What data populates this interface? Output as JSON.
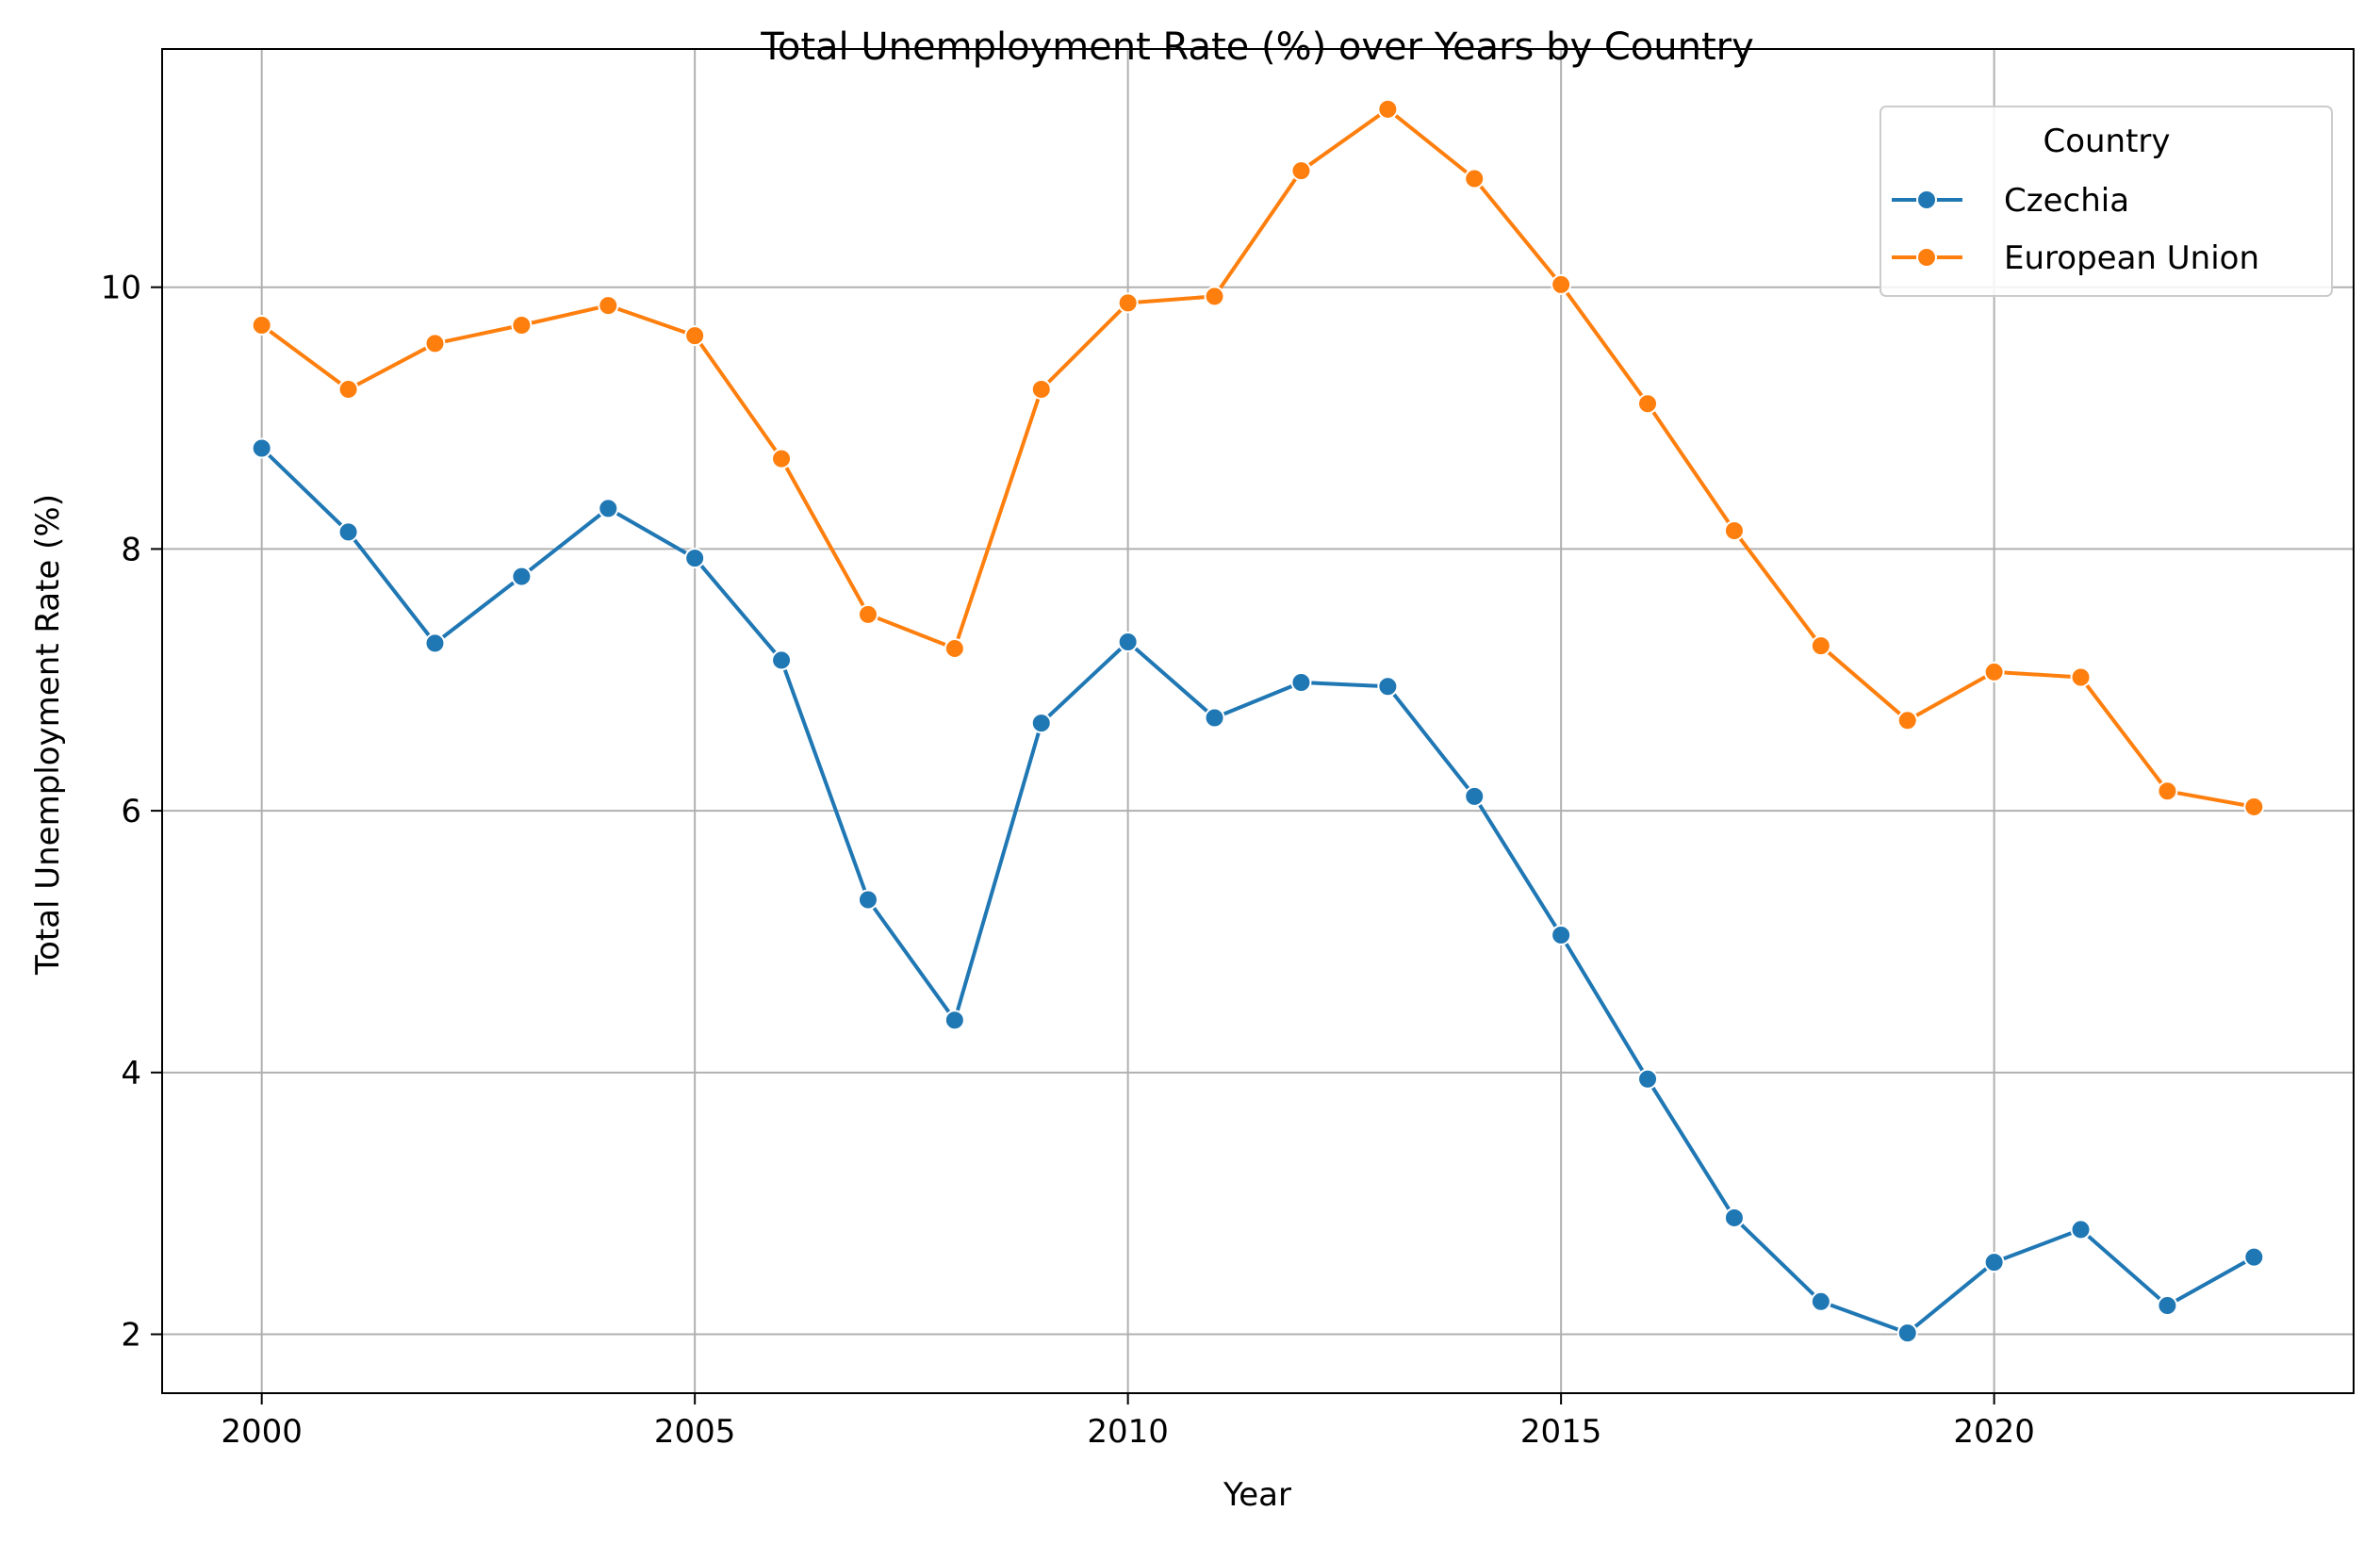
{
  "chart_data": {
    "type": "line",
    "title": "Total Unemployment Rate (%) over Years by Country",
    "xlabel": "Year",
    "ylabel": "Total Unemployment Rate (%)",
    "xlim": [
      1998.85,
      2024.15
    ],
    "ylim": [
      1.55,
      11.82
    ],
    "xticks": [
      2000,
      2005,
      2010,
      2015,
      2020
    ],
    "yticks": [
      2,
      4,
      6,
      8,
      10
    ],
    "grid": true,
    "legend": {
      "title": "Country",
      "placement": "top-right"
    },
    "x": [
      2000,
      2001,
      2002,
      2003,
      2004,
      2005,
      2006,
      2007,
      2008,
      2009,
      2010,
      2011,
      2012,
      2013,
      2014,
      2015,
      2016,
      2017,
      2018,
      2019,
      2020,
      2021,
      2022,
      2023
    ],
    "series": [
      {
        "name": "Czechia",
        "color": "#1f77b4",
        "values": [
          8.77,
          8.13,
          7.28,
          7.79,
          8.31,
          7.93,
          7.15,
          5.32,
          4.4,
          6.67,
          7.29,
          6.71,
          6.98,
          6.95,
          6.11,
          5.05,
          3.95,
          2.89,
          2.25,
          2.01,
          2.55,
          2.8,
          2.22,
          2.59
        ]
      },
      {
        "name": "European Union",
        "color": "#ff7f0e",
        "values": [
          9.71,
          9.22,
          9.57,
          9.71,
          9.86,
          9.63,
          8.69,
          7.5,
          7.24,
          9.22,
          9.88,
          9.93,
          10.89,
          11.36,
          10.83,
          10.02,
          9.11,
          8.14,
          7.26,
          6.69,
          7.06,
          7.02,
          6.15,
          6.03
        ]
      }
    ]
  }
}
